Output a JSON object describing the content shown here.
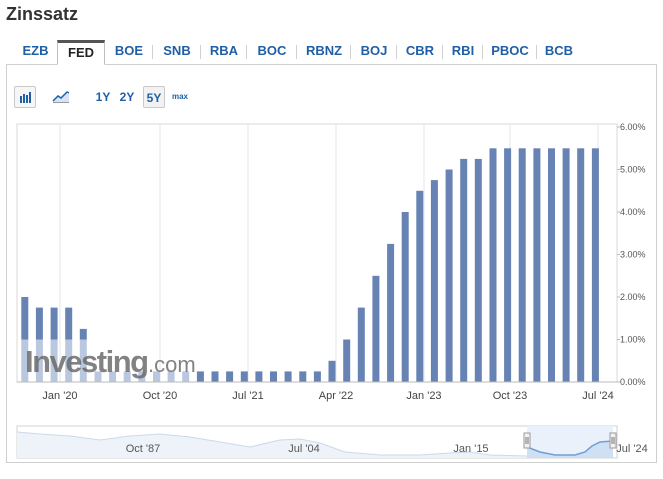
{
  "page": {
    "title": "Zinssatz"
  },
  "tabs": [
    {
      "label": "EZB",
      "active": false
    },
    {
      "label": "FED",
      "active": true
    },
    {
      "label": "BOE",
      "active": false
    },
    {
      "label": "SNB",
      "active": false
    },
    {
      "label": "RBA",
      "active": false
    },
    {
      "label": "BOC",
      "active": false
    },
    {
      "label": "RBNZ",
      "active": false
    },
    {
      "label": "BOJ",
      "active": false
    },
    {
      "label": "CBR",
      "active": false
    },
    {
      "label": "RBI",
      "active": false
    },
    {
      "label": "PBOC",
      "active": false
    },
    {
      "label": "BCB",
      "active": false
    }
  ],
  "toolbar": {
    "chart_types": [
      {
        "icon": "bar-chart-icon",
        "active": true
      },
      {
        "icon": "area-chart-icon",
        "active": false
      }
    ],
    "ranges": [
      {
        "label": "1Y",
        "active": false
      },
      {
        "label": "2Y",
        "active": false
      },
      {
        "label": "5Y",
        "active": true
      },
      {
        "label": "max",
        "active": false
      }
    ]
  },
  "watermark": {
    "brand": "Investing",
    "suffix": ".com"
  },
  "colors": {
    "bar": "#6783b3",
    "bar_faded": "#b9c8df",
    "link": "#1f5fa8",
    "navigator_fill": "#cfe0f3",
    "navigator_line": "#6f9fd8"
  },
  "chart_data": {
    "type": "bar",
    "title": "",
    "xlabel": "",
    "ylabel": "",
    "ylim": [
      0,
      6
    ],
    "y_ticks": [
      "0.00%",
      "1.00%",
      "2.00%",
      "3.00%",
      "4.00%",
      "5.00%",
      "6.00%"
    ],
    "y_axis_side": "right",
    "grid": "vertical",
    "x_tick_labels": [
      "Jan '20",
      "Oct '20",
      "Jul '21",
      "Apr '22",
      "Jan '23",
      "Oct '23",
      "Jul '24"
    ],
    "values": [
      2.0,
      1.75,
      1.75,
      1.75,
      1.25,
      0.25,
      0.25,
      0.25,
      0.25,
      0.25,
      0.25,
      0.25,
      0.25,
      0.25,
      0.25,
      0.25,
      0.25,
      0.25,
      0.25,
      0.25,
      0.25,
      0.5,
      1.0,
      1.75,
      2.5,
      3.25,
      4.0,
      4.5,
      4.75,
      5.0,
      5.25,
      5.25,
      5.5,
      5.5,
      5.5,
      5.5,
      5.5,
      5.5,
      5.5,
      5.5
    ],
    "navigator": {
      "labels": [
        "Oct '87",
        "Jul '04",
        "Jan '15",
        "Jul '24"
      ]
    }
  }
}
